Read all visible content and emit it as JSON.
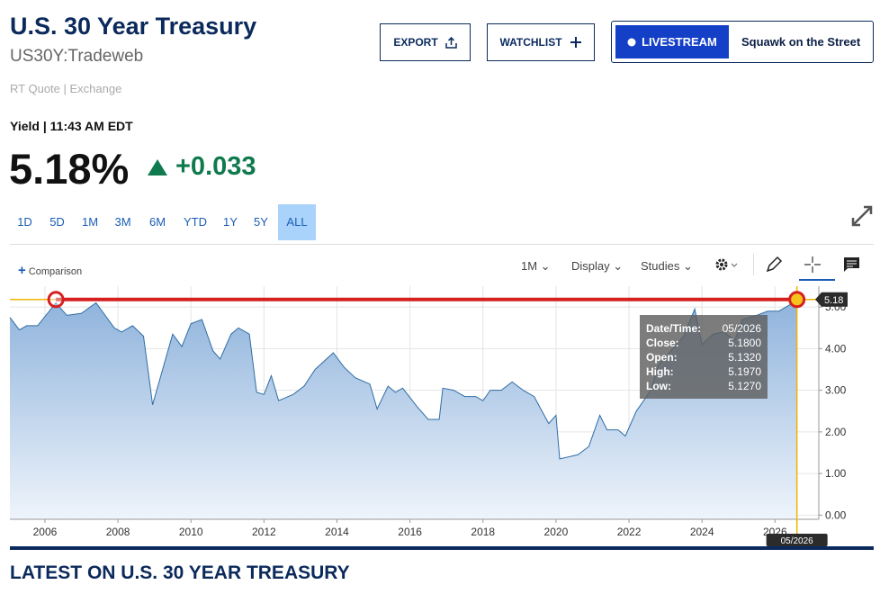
{
  "header": {
    "title": "U.S. 30 Year Treasury",
    "symbol": "US30Y:Tradeweb",
    "quote_source": "RT Quote",
    "quote_exchange": "Exchange",
    "buttons": [
      "EXPORT",
      "WATCHLIST"
    ],
    "live": {
      "label": "LIVESTREAM",
      "show": "Squawk on the Street"
    }
  },
  "quote": {
    "label": "Yield",
    "time": "11:43 AM EDT",
    "value": "5.18%",
    "change": "+0.033"
  },
  "ranges": [
    "1D",
    "5D",
    "1M",
    "3M",
    "6M",
    "YTD",
    "1Y",
    "5Y",
    "ALL"
  ],
  "selected_range": "ALL",
  "toolbar": {
    "comparison": "Comparison",
    "interval": "1M",
    "display": "Display",
    "studies": "Studies"
  },
  "chart_data": {
    "type": "area",
    "color": "#2e6da4",
    "x": [
      2005.04,
      2005.3,
      2005.5,
      2005.8,
      2006.3,
      2006.6,
      2007.0,
      2007.4,
      2007.9,
      2008.1,
      2008.4,
      2008.7,
      2008.95,
      2009.5,
      2009.75,
      2010.0,
      2010.3,
      2010.6,
      2010.8,
      2011.1,
      2011.3,
      2011.6,
      2011.8,
      2012.0,
      2012.2,
      2012.4,
      2012.8,
      2013.1,
      2013.4,
      2013.9,
      2014.2,
      2014.5,
      2014.9,
      2015.1,
      2015.4,
      2015.6,
      2015.8,
      2016.2,
      2016.5,
      2016.8,
      2016.9,
      2017.2,
      2017.5,
      2017.8,
      2018.0,
      2018.2,
      2018.5,
      2018.8,
      2019.1,
      2019.4,
      2019.8,
      2020.0,
      2020.1,
      2020.6,
      2020.9,
      2021.2,
      2021.4,
      2021.7,
      2021.9,
      2022.2,
      2022.6,
      2022.8,
      2023.1,
      2023.5,
      2023.8,
      2024.0,
      2024.3,
      2024.6,
      2024.9,
      2025.1,
      2025.5,
      2025.8,
      2026.1,
      2026.4,
      2026.6
    ],
    "values": [
      4.75,
      4.45,
      4.55,
      4.55,
      5.1,
      4.8,
      4.85,
      5.1,
      4.5,
      4.4,
      4.55,
      4.3,
      2.65,
      4.35,
      4.05,
      4.6,
      4.7,
      3.95,
      3.75,
      4.35,
      4.5,
      4.35,
      2.95,
      2.9,
      3.35,
      2.75,
      2.9,
      3.1,
      3.5,
      3.9,
      3.55,
      3.3,
      3.15,
      2.55,
      3.1,
      2.95,
      3.05,
      2.6,
      2.3,
      2.3,
      3.05,
      3.0,
      2.85,
      2.85,
      2.75,
      3.0,
      3.0,
      3.2,
      3.0,
      2.85,
      2.2,
      2.4,
      1.35,
      1.45,
      1.65,
      2.4,
      2.05,
      2.05,
      1.9,
      2.5,
      3.0,
      3.6,
      3.9,
      4.3,
      4.95,
      4.1,
      4.35,
      4.4,
      4.2,
      4.7,
      4.8,
      4.9,
      4.9,
      5.05,
      5.18
    ],
    "xlim": [
      2005.04,
      2027.2
    ],
    "ylim": [
      -0.1,
      5.5
    ],
    "xticks": [
      2006,
      2008,
      2010,
      2012,
      2014,
      2016,
      2018,
      2020,
      2022,
      2024,
      2026
    ],
    "yticks": [
      {
        "value": 0,
        "label": "0.00"
      },
      {
        "value": 1,
        "label": "1.00"
      },
      {
        "value": 2,
        "label": "2.00"
      },
      {
        "value": 3,
        "label": "3.00"
      },
      {
        "value": 4,
        "label": "4.00"
      },
      {
        "value": 5,
        "label": "5.00"
      }
    ],
    "grid": true,
    "drawing": {
      "x": [
        2006.3,
        2026.6
      ],
      "y": [
        5.18,
        5.18
      ]
    },
    "crosshair": {
      "x": 2026.6,
      "y": 5.18,
      "x_label": "05/2026"
    },
    "tooltip": [
      {
        "label": "Date/Time:",
        "value": "05/2026"
      },
      {
        "label": "Close:",
        "value": "5.1800"
      },
      {
        "label": "Open:",
        "value": "5.1320"
      },
      {
        "label": "High:",
        "value": "5.1970"
      },
      {
        "label": "Low:",
        "value": "5.1270"
      }
    ]
  },
  "section_title": "LATEST ON U.S. 30 YEAR TREASURY"
}
